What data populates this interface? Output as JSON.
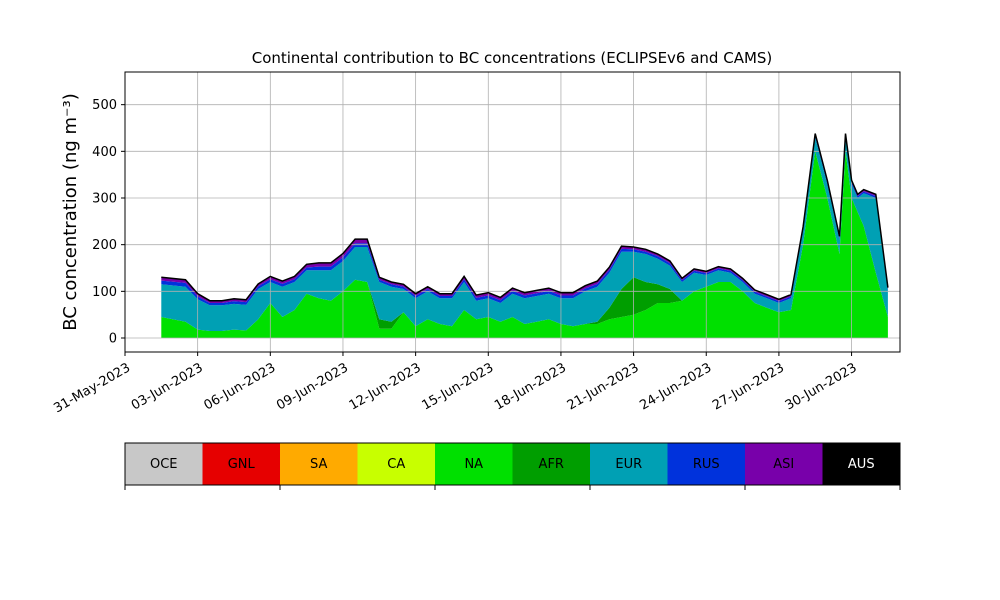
{
  "chart_data": {
    "type": "area",
    "stacked": true,
    "title": "Continental contribution to BC concentrations (ECLIPSEv6 and CAMS)",
    "ylabel": "BC concentration (ng m⁻³)",
    "xlabel": "",
    "ylim": [
      -30,
      570
    ],
    "yticks": [
      0,
      100,
      200,
      300,
      400,
      500
    ],
    "x_range": [
      "2023-05-31",
      "2023-07-02"
    ],
    "xticks": [
      "31-May-2023",
      "03-Jun-2023",
      "06-Jun-2023",
      "09-Jun-2023",
      "12-Jun-2023",
      "15-Jun-2023",
      "18-Jun-2023",
      "21-Jun-2023",
      "24-Jun-2023",
      "27-Jun-2023",
      "30-Jun-2023"
    ],
    "grid": true,
    "x": [
      "2023-06-01T12",
      "2023-06-02T12",
      "2023-06-03T00",
      "2023-06-03T12",
      "2023-06-04T00",
      "2023-06-04T12",
      "2023-06-05T00",
      "2023-06-05T12",
      "2023-06-06T00",
      "2023-06-06T12",
      "2023-06-07T00",
      "2023-06-07T12",
      "2023-06-08T00",
      "2023-06-08T12",
      "2023-06-09T00",
      "2023-06-09T12",
      "2023-06-10T00",
      "2023-06-10T12",
      "2023-06-11T00",
      "2023-06-11T12",
      "2023-06-12T00",
      "2023-06-12T12",
      "2023-06-13T00",
      "2023-06-13T12",
      "2023-06-14T00",
      "2023-06-14T12",
      "2023-06-15T00",
      "2023-06-15T12",
      "2023-06-16T00",
      "2023-06-16T12",
      "2023-06-17T00",
      "2023-06-17T12",
      "2023-06-18T00",
      "2023-06-18T12",
      "2023-06-19T00",
      "2023-06-19T12",
      "2023-06-20T00",
      "2023-06-20T12",
      "2023-06-21T00",
      "2023-06-21T12",
      "2023-06-22T00",
      "2023-06-22T12",
      "2023-06-23T00",
      "2023-06-23T12",
      "2023-06-24T00",
      "2023-06-24T12",
      "2023-06-25T00",
      "2023-06-25T12",
      "2023-06-26T00",
      "2023-06-26T12",
      "2023-06-27T00",
      "2023-06-27T12",
      "2023-06-28T00",
      "2023-06-28T12",
      "2023-06-29T00",
      "2023-06-29T12",
      "2023-06-29T18",
      "2023-06-30T00",
      "2023-06-30T06",
      "2023-06-30T12",
      "2023-07-01T00",
      "2023-07-01T12"
    ],
    "series": [
      {
        "name": "OCE",
        "color": "#c8c8c8",
        "values": [
          0,
          0,
          0,
          0,
          0,
          0,
          0,
          0,
          0,
          0,
          0,
          0,
          0,
          0,
          0,
          0,
          0,
          0,
          0,
          0,
          0,
          0,
          0,
          0,
          0,
          0,
          0,
          0,
          0,
          0,
          0,
          0,
          0,
          0,
          0,
          0,
          0,
          0,
          0,
          0,
          0,
          0,
          0,
          0,
          0,
          0,
          0,
          0,
          0,
          0,
          0,
          0,
          0,
          0,
          0,
          0,
          0,
          0,
          0,
          0,
          0,
          0
        ]
      },
      {
        "name": "GNL",
        "color": "#e60000",
        "values": [
          0,
          0,
          0,
          0,
          0,
          0,
          0,
          0,
          0,
          0,
          0,
          0,
          0,
          0,
          0,
          0,
          0,
          0,
          0,
          0,
          0,
          0,
          0,
          0,
          0,
          0,
          0,
          0,
          0,
          0,
          0,
          0,
          0,
          0,
          0,
          0,
          0,
          0,
          0,
          0,
          0,
          0,
          0,
          0,
          0,
          0,
          0,
          0,
          0,
          0,
          0,
          0,
          0,
          0,
          0,
          0,
          0,
          0,
          0,
          0,
          0,
          0
        ]
      },
      {
        "name": "SA",
        "color": "#ffaa00",
        "values": [
          0,
          0,
          0,
          0,
          0,
          0,
          0,
          0,
          0,
          0,
          0,
          0,
          0,
          0,
          0,
          0,
          0,
          0,
          0,
          0,
          0,
          0,
          0,
          0,
          0,
          0,
          0,
          0,
          0,
          0,
          0,
          0,
          0,
          0,
          0,
          0,
          0,
          0,
          0,
          0,
          0,
          0,
          0,
          0,
          0,
          0,
          0,
          0,
          0,
          0,
          0,
          0,
          0,
          0,
          0,
          0,
          0,
          0,
          0,
          0,
          0,
          0
        ]
      },
      {
        "name": "CA",
        "color": "#c8ff00",
        "values": [
          0,
          0,
          0,
          0,
          0,
          0,
          0,
          0,
          0,
          0,
          0,
          0,
          0,
          0,
          0,
          0,
          0,
          0,
          0,
          0,
          0,
          0,
          0,
          0,
          0,
          0,
          0,
          0,
          0,
          0,
          0,
          0,
          0,
          0,
          0,
          0,
          0,
          0,
          0,
          0,
          0,
          0,
          0,
          0,
          0,
          0,
          0,
          0,
          0,
          0,
          0,
          0,
          0,
          0,
          0,
          0,
          0,
          0,
          0,
          0,
          0,
          0
        ]
      },
      {
        "name": "NA",
        "color": "#00e000",
        "values": [
          45,
          35,
          18,
          15,
          15,
          18,
          16,
          40,
          75,
          45,
          60,
          95,
          85,
          80,
          100,
          125,
          120,
          20,
          20,
          55,
          25,
          40,
          30,
          25,
          60,
          40,
          45,
          35,
          45,
          30,
          35,
          40,
          30,
          25,
          30,
          30,
          40,
          45,
          50,
          60,
          75,
          75,
          80,
          100,
          110,
          120,
          120,
          100,
          75,
          65,
          55,
          60,
          200,
          400,
          300,
          180,
          400,
          300,
          270,
          240,
          140,
          45
        ]
      },
      {
        "name": "AFR",
        "color": "#009e00",
        "values": [
          0,
          0,
          0,
          0,
          0,
          0,
          0,
          0,
          0,
          0,
          0,
          0,
          0,
          0,
          0,
          0,
          0,
          20,
          15,
          0,
          0,
          0,
          0,
          0,
          0,
          0,
          0,
          0,
          0,
          0,
          0,
          0,
          0,
          0,
          0,
          5,
          25,
          60,
          80,
          60,
          40,
          30,
          0,
          0,
          0,
          0,
          0,
          0,
          0,
          0,
          0,
          0,
          0,
          0,
          0,
          0,
          0,
          0,
          0,
          0,
          0,
          0
        ]
      },
      {
        "name": "EUR",
        "color": "#00a0b4",
        "values": [
          70,
          75,
          65,
          55,
          55,
          55,
          55,
          65,
          45,
          65,
          60,
          50,
          60,
          65,
          65,
          70,
          75,
          80,
          75,
          50,
          60,
          60,
          55,
          60,
          60,
          40,
          40,
          40,
          50,
          55,
          55,
          55,
          55,
          60,
          70,
          75,
          75,
          80,
          55,
          60,
          55,
          50,
          40,
          40,
          25,
          25,
          20,
          20,
          20,
          20,
          20,
          25,
          30,
          30,
          30,
          30,
          30,
          30,
          30,
          70,
          160,
          55
        ]
      },
      {
        "name": "RUS",
        "color": "#0032dc",
        "values": [
          8,
          8,
          6,
          5,
          5,
          6,
          6,
          6,
          6,
          6,
          6,
          6,
          8,
          8,
          8,
          8,
          8,
          5,
          5,
          5,
          5,
          5,
          5,
          5,
          6,
          6,
          6,
          6,
          6,
          6,
          6,
          6,
          6,
          6,
          6,
          6,
          6,
          6,
          5,
          5,
          5,
          5,
          4,
          4,
          4,
          4,
          4,
          4,
          4,
          4,
          4,
          4,
          4,
          4,
          4,
          4,
          4,
          4,
          4,
          4,
          4,
          4
        ]
      },
      {
        "name": "ASI",
        "color": "#7800aa",
        "values": [
          7,
          7,
          6,
          5,
          5,
          5,
          5,
          5,
          6,
          6,
          6,
          7,
          8,
          8,
          8,
          9,
          9,
          5,
          5,
          5,
          5,
          5,
          5,
          5,
          6,
          6,
          6,
          6,
          6,
          6,
          6,
          6,
          6,
          6,
          6,
          6,
          6,
          6,
          5,
          5,
          5,
          5,
          4,
          4,
          4,
          4,
          4,
          4,
          4,
          4,
          4,
          4,
          4,
          4,
          4,
          4,
          4,
          4,
          4,
          4,
          4,
          4
        ]
      },
      {
        "name": "AUS",
        "color": "#000000",
        "values": [
          0,
          0,
          0,
          0,
          0,
          0,
          0,
          0,
          0,
          0,
          0,
          0,
          0,
          0,
          0,
          0,
          0,
          0,
          0,
          0,
          0,
          0,
          0,
          0,
          0,
          0,
          0,
          0,
          0,
          0,
          0,
          0,
          0,
          0,
          0,
          0,
          0,
          0,
          0,
          0,
          0,
          0,
          0,
          0,
          0,
          0,
          0,
          0,
          0,
          0,
          0,
          0,
          0,
          0,
          0,
          0,
          0,
          0,
          0,
          0,
          0,
          0
        ]
      }
    ],
    "total_values": [
      130,
      125,
      95,
      80,
      80,
      84,
      82,
      116,
      132,
      122,
      132,
      158,
      161,
      161,
      181,
      212,
      212,
      130,
      120,
      115,
      95,
      110,
      95,
      95,
      132,
      92,
      97,
      87,
      107,
      97,
      102,
      107,
      97,
      97,
      112,
      122,
      152,
      197,
      195,
      190,
      180,
      165,
      128,
      148,
      143,
      153,
      148,
      128,
      103,
      93,
      83,
      93,
      238,
      438,
      338,
      218,
      438,
      338,
      308,
      318,
      308,
      108
    ]
  }
}
